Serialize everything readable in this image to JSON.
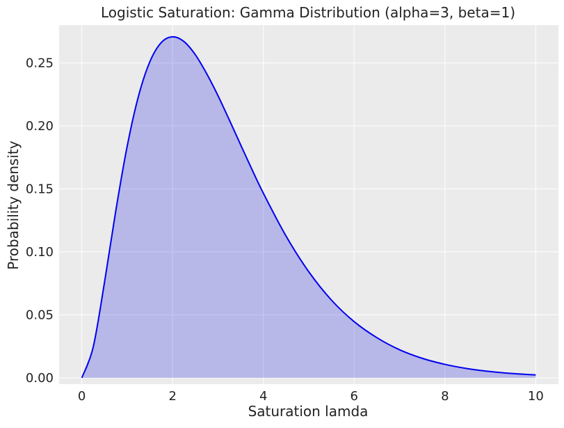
{
  "chart_data": {
    "type": "area",
    "title": "Logistic Saturation: Gamma Distribution (alpha=3, beta=1)",
    "xlabel": "Saturation lamda",
    "ylabel": "Probability density",
    "xlim": [
      -0.5,
      10.5
    ],
    "ylim": [
      -0.005,
      0.28
    ],
    "x_ticks": [
      0,
      2,
      4,
      6,
      8,
      10
    ],
    "x_tick_labels": [
      "0",
      "2",
      "4",
      "6",
      "8",
      "10"
    ],
    "y_ticks": [
      0.0,
      0.05,
      0.1,
      0.15,
      0.2,
      0.25
    ],
    "y_tick_labels": [
      "0.00",
      "0.05",
      "0.10",
      "0.15",
      "0.20",
      "0.25"
    ],
    "grid": true,
    "series": [
      {
        "x": [
          0,
          0.25,
          0.5,
          0.75,
          1,
          1.25,
          1.5,
          1.75,
          2,
          2.25,
          2.5,
          2.75,
          3,
          3.25,
          3.5,
          3.75,
          4,
          4.5,
          5,
          5.5,
          6,
          6.5,
          7,
          7.5,
          8,
          8.5,
          9,
          9.5,
          10
        ],
        "y": [
          0,
          0.0243,
          0.0758,
          0.1329,
          0.1839,
          0.2238,
          0.251,
          0.2661,
          0.2707,
          0.2669,
          0.2565,
          0.2415,
          0.224,
          0.2047,
          0.1849,
          0.1653,
          0.1465,
          0.1125,
          0.0842,
          0.0617,
          0.0446,
          0.0319,
          0.0223,
          0.0155,
          0.0107,
          0.0073,
          0.005,
          0.0034,
          0.0023
        ],
        "line_color": "#0000ee",
        "fill_color": "#0000e0",
        "fill_opacity": 0.22
      }
    ],
    "colors": {
      "plot_background": "#ebebeb",
      "grid": "#ffffff"
    }
  }
}
